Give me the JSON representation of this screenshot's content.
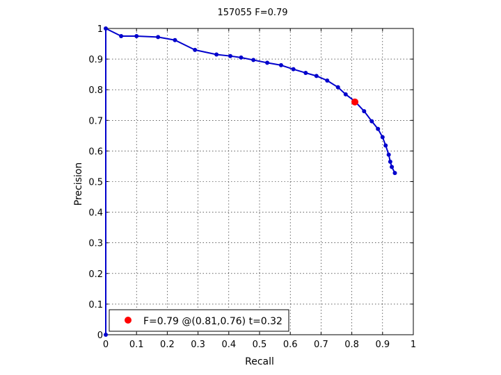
{
  "chart_data": {
    "type": "line",
    "title": "157055 F=0.79",
    "xlabel": "Recall",
    "ylabel": "Precision",
    "xlim": [
      0,
      1
    ],
    "ylim": [
      0,
      1
    ],
    "grid": true,
    "x_ticks": [
      "0",
      "0.1",
      "0.2",
      "0.3",
      "0.4",
      "0.5",
      "0.6",
      "0.7",
      "0.8",
      "0.9",
      "1"
    ],
    "y_ticks": [
      "0",
      "0.1",
      "0.2",
      "0.3",
      "0.4",
      "0.5",
      "0.6",
      "0.7",
      "0.8",
      "0.9",
      "1"
    ],
    "series": [
      {
        "color": "#0000cc",
        "x": [
          0,
          0,
          0.05,
          0.1,
          0.17,
          0.225,
          0.29,
          0.36,
          0.405,
          0.44,
          0.48,
          0.525,
          0.57,
          0.61,
          0.65,
          0.685,
          0.72,
          0.755,
          0.78,
          0.81,
          0.84,
          0.865,
          0.885,
          0.9,
          0.91,
          0.92,
          0.925,
          0.93,
          0.94
        ],
        "y": [
          0,
          1,
          0.975,
          0.975,
          0.972,
          0.962,
          0.93,
          0.915,
          0.91,
          0.905,
          0.897,
          0.888,
          0.88,
          0.867,
          0.855,
          0.845,
          0.83,
          0.808,
          0.785,
          0.762,
          0.73,
          0.697,
          0.672,
          0.645,
          0.618,
          0.588,
          0.565,
          0.548,
          0.528
        ]
      }
    ],
    "best_point": {
      "x": 0.81,
      "y": 0.76,
      "color": "#ff0000"
    },
    "legend": {
      "position": "bottom-left",
      "entries": [
        "F=0.79 @(0.81,0.76) t=0.32"
      ]
    }
  }
}
